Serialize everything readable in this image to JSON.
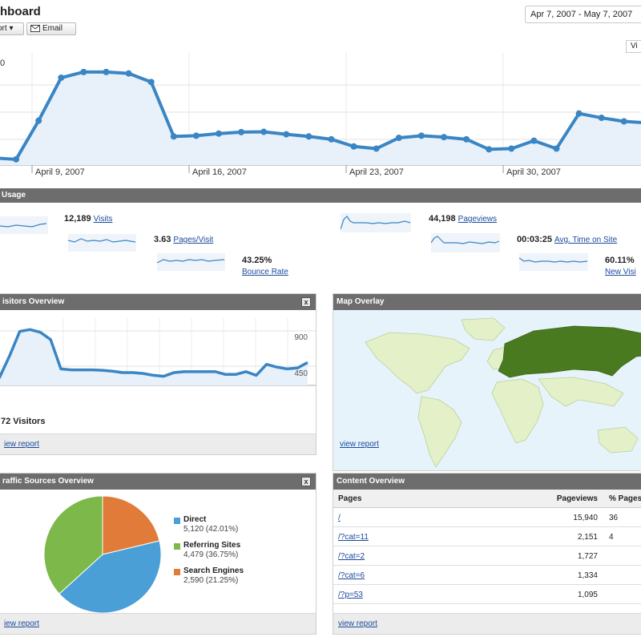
{
  "header": {
    "title": "hboard",
    "export_label": "ort ▾",
    "email_label": "Email",
    "date_range": "Apr 7, 2007 - May 7, 2007",
    "view_tab_label": "Vi"
  },
  "main_chart": {
    "x_labels": [
      "April 9, 2007",
      "April 16, 2007",
      "April 23, 2007",
      "April 30, 2007"
    ],
    "y_label_visible": "0",
    "line_color": "#3a85c4",
    "fill_color": "#e8f1fa"
  },
  "chart_data": [
    {
      "type": "line",
      "title": "",
      "x": [
        "Apr 7",
        "Apr 8",
        "Apr 9",
        "Apr 10",
        "Apr 11",
        "Apr 12",
        "Apr 13",
        "Apr 14",
        "Apr 15",
        "Apr 16",
        "Apr 17",
        "Apr 18",
        "Apr 19",
        "Apr 20",
        "Apr 21",
        "Apr 22",
        "Apr 23",
        "Apr 24",
        "Apr 25",
        "Apr 26",
        "Apr 27",
        "Apr 28",
        "Apr 29",
        "Apr 30",
        "May 1",
        "May 2",
        "May 3",
        "May 4",
        "May 5",
        "May 6"
      ],
      "series": [
        {
          "values": [
            300,
            290,
            560,
            860,
            900,
            900,
            890,
            830,
            450,
            455,
            470,
            480,
            482,
            465,
            450,
            430,
            380,
            365,
            440,
            455,
            445,
            430,
            360,
            365,
            420,
            365,
            610,
            580,
            555,
            545
          ]
        }
      ],
      "x_tick_labels": [
        "April 9, 2007",
        "April 16, 2007",
        "April 23, 2007",
        "April 30, 2007"
      ],
      "ylim": [
        250,
        1000
      ],
      "grid": true
    },
    {
      "type": "line",
      "title": "Visitors Overview",
      "series": [
        {
          "values": [
            380,
            620,
            890,
            910,
            880,
            800,
            480,
            470,
            470,
            470,
            465,
            455,
            440,
            440,
            430,
            410,
            400,
            440,
            450,
            450,
            450,
            450,
            420,
            420,
            450,
            410,
            530,
            500,
            480,
            490,
            550
          ]
        }
      ],
      "y_tick_labels": [
        "900",
        "450"
      ],
      "ylim": [
        300,
        1000
      ],
      "grid": true
    },
    {
      "type": "pie",
      "title": "Traffic Sources Overview",
      "categories": [
        "Direct",
        "Referring Sites",
        "Search Engines"
      ],
      "values": [
        5120,
        4479,
        2590
      ],
      "percentages": [
        42.01,
        36.75,
        21.25
      ],
      "colors": [
        "#4a9fd6",
        "#7cb84a",
        "#e07b39"
      ]
    }
  ],
  "site_usage": {
    "section_title": "Usage",
    "metrics": [
      {
        "value": "12,189",
        "label": "Visits"
      },
      {
        "value": "3.63",
        "label": "Pages/Visit"
      },
      {
        "value": "43.25%",
        "label": "Bounce Rate"
      },
      {
        "value": "44,198",
        "label": "Pageviews"
      },
      {
        "value": "00:03:25",
        "label": "Avg. Time on Site"
      },
      {
        "value": "60.11%",
        "label": "New Visi"
      }
    ]
  },
  "visitors_panel": {
    "title": "isitors Overview",
    "close_label": "x",
    "y_top": "900",
    "y_mid": "450",
    "total": "72 Visitors",
    "view_report": "iew report"
  },
  "map_panel": {
    "title": "Map Overlay",
    "view_report": "view report",
    "highlight_color": "#4a7a1f",
    "land_color": "#e3f0c8",
    "sea_color": "#e6f3fb"
  },
  "traffic_panel": {
    "title": "raffic Sources Overview",
    "close_label": "x",
    "view_report": "iew report",
    "legend": [
      {
        "name": "Direct",
        "value": "5,120 (42.01%)",
        "color": "#4a9fd6"
      },
      {
        "name": "Referring Sites",
        "value": "4,479 (36.75%)",
        "color": "#7cb84a"
      },
      {
        "name": "Search Engines",
        "value": "2,590 (21.25%)",
        "color": "#e07b39"
      }
    ]
  },
  "content_panel": {
    "title": "Content Overview",
    "view_report": "view report",
    "columns": [
      "Pages",
      "Pageviews",
      "% Pages"
    ],
    "rows": [
      {
        "page": "/",
        "pageviews": "15,940",
        "pct": "36"
      },
      {
        "page": "/?cat=11",
        "pageviews": "2,151",
        "pct": "4"
      },
      {
        "page": "/?cat=2",
        "pageviews": "1,727",
        "pct": ""
      },
      {
        "page": "/?cat=6",
        "pageviews": "1,334",
        "pct": ""
      },
      {
        "page": "/?p=53",
        "pageviews": "1,095",
        "pct": ""
      }
    ]
  }
}
